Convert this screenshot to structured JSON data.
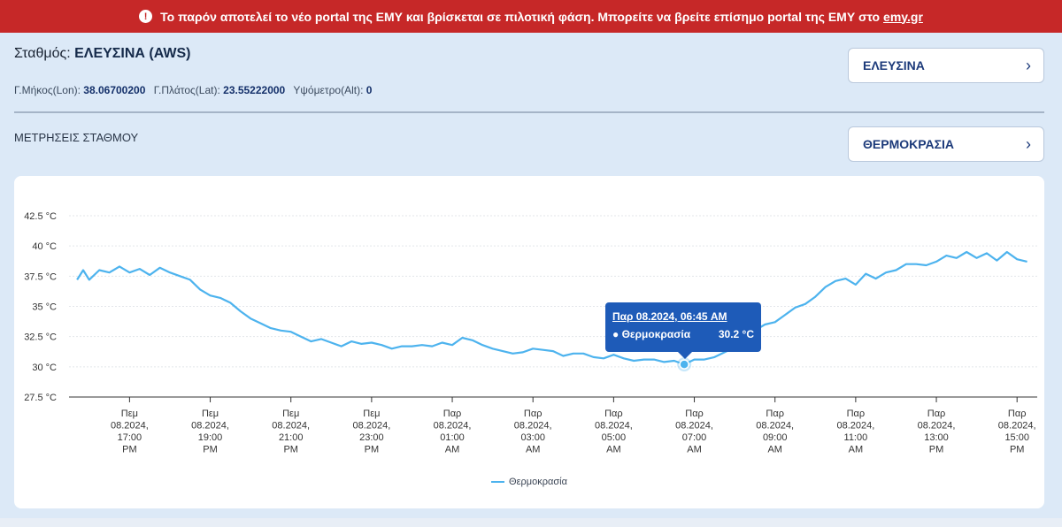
{
  "banner": {
    "text": "Το παρόν αποτελεί το νέο portal της ΕΜΥ και βρίσκεται σε πιλοτική φάση. Μπορείτε να βρείτε επίσημο portal της ΕΜΥ στο",
    "link": "emy.gr",
    "icon": "exclamation-circle-icon",
    "color": "#c62828"
  },
  "station": {
    "label": "Σταθμός:",
    "name": "ΕΛΕΥΣΙΝΑ (AWS)",
    "lon_label": "Γ.Μήκος(Lon):",
    "lon": "38.06700200",
    "lat_label": "Γ.Πλάτος(Lat):",
    "lat": "23.55222000",
    "alt_label": "Υψόμετρο(Alt):",
    "alt": "0"
  },
  "section": {
    "title": "ΜΕΤΡΗΣΕΙΣ ΣΤΑΘΜΟΥ"
  },
  "selectors": {
    "station": "ΕΛΕΥΣΙΝΑ",
    "parameter": "ΘΕΡΜΟΚΡΑΣΙΑ",
    "chevron_icon": "chevron-right-icon"
  },
  "tooltip": {
    "title": "Παρ 08.2024, 06:45 AM",
    "series": "● Θερμοκρασία",
    "value": "30.2 °C"
  },
  "colors": {
    "line": "#4db3ee",
    "tooltip": "#1e5bb8",
    "accent": "#1c3a7a"
  },
  "chart_data": {
    "type": "line",
    "ylim": [
      27.5,
      42.5
    ],
    "ytick_labels": [
      "42.5 °C",
      "40 °C",
      "37.5 °C",
      "35 °C",
      "32.5 °C",
      "30 °C",
      "27.5 °C"
    ],
    "yticks": [
      42.5,
      40,
      37.5,
      35,
      32.5,
      30,
      27.5
    ],
    "xlim": [
      15.5,
      39.5
    ],
    "xticks": [
      17,
      19,
      21,
      23,
      25,
      27,
      29,
      31,
      33,
      35,
      37,
      39
    ],
    "xtick_labels": [
      [
        "Πεμ",
        "08.2024,",
        "17:00",
        "PM"
      ],
      [
        "Πεμ",
        "08.2024,",
        "19:00",
        "PM"
      ],
      [
        "Πεμ",
        "08.2024,",
        "21:00",
        "PM"
      ],
      [
        "Πεμ",
        "08.2024,",
        "23:00",
        "PM"
      ],
      [
        "Παρ",
        "08.2024,",
        "01:00",
        "AM"
      ],
      [
        "Παρ",
        "08.2024,",
        "03:00",
        "AM"
      ],
      [
        "Παρ",
        "08.2024,",
        "05:00",
        "AM"
      ],
      [
        "Παρ",
        "08.2024,",
        "07:00",
        "AM"
      ],
      [
        "Παρ",
        "08.2024,",
        "09:00",
        "AM"
      ],
      [
        "Παρ",
        "08.2024,",
        "11:00",
        "AM"
      ],
      [
        "Παρ",
        "08.2024,",
        "13:00",
        "PM"
      ],
      [
        "Παρ",
        "08.2024,",
        "15:00",
        "PM"
      ]
    ],
    "grid": true,
    "legend_position": "bottom-center",
    "series": [
      {
        "name": "Θερμοκρασία",
        "highlight": {
          "x": 30.75,
          "y": 30.2
        },
        "x": [
          15.7,
          15.85,
          16.0,
          16.25,
          16.5,
          16.75,
          17.0,
          17.25,
          17.5,
          17.75,
          18.0,
          18.25,
          18.5,
          18.75,
          19.0,
          19.25,
          19.5,
          19.75,
          20.0,
          20.25,
          20.5,
          20.75,
          21.0,
          21.25,
          21.5,
          21.75,
          22.0,
          22.25,
          22.5,
          22.75,
          23.0,
          23.25,
          23.5,
          23.75,
          24.0,
          24.25,
          24.5,
          24.75,
          25.0,
          25.25,
          25.5,
          25.75,
          26.0,
          26.25,
          26.5,
          26.75,
          27.0,
          27.25,
          27.5,
          27.75,
          28.0,
          28.25,
          28.5,
          28.75,
          29.0,
          29.25,
          29.5,
          29.75,
          30.0,
          30.25,
          30.5,
          30.75,
          31.0,
          31.25,
          31.5,
          31.75,
          32.0,
          32.25,
          32.5,
          32.75,
          33.0,
          33.25,
          33.5,
          33.75,
          34.0,
          34.25,
          34.5,
          34.75,
          35.0,
          35.25,
          35.5,
          35.75,
          36.0,
          36.25,
          36.5,
          36.75,
          37.0,
          37.25,
          37.5,
          37.75,
          38.0,
          38.25,
          38.5,
          38.75,
          39.0,
          39.25
        ],
        "y": [
          37.2,
          38.0,
          37.2,
          38.0,
          37.8,
          38.3,
          37.8,
          38.1,
          37.6,
          38.2,
          37.8,
          37.5,
          37.2,
          36.4,
          35.9,
          35.7,
          35.3,
          34.6,
          34.0,
          33.6,
          33.2,
          33.0,
          32.9,
          32.5,
          32.1,
          32.3,
          32.0,
          31.7,
          32.1,
          31.9,
          32.0,
          31.8,
          31.5,
          31.7,
          31.7,
          31.8,
          31.7,
          32.0,
          31.8,
          32.4,
          32.2,
          31.8,
          31.5,
          31.3,
          31.1,
          31.2,
          31.5,
          31.4,
          31.3,
          30.9,
          31.1,
          31.1,
          30.8,
          30.7,
          31.0,
          30.7,
          30.5,
          30.6,
          30.6,
          30.4,
          30.5,
          30.2,
          30.6,
          30.6,
          30.8,
          31.2,
          31.6,
          32.5,
          33.0,
          33.5,
          33.7,
          34.3,
          34.9,
          35.2,
          35.8,
          36.6,
          37.1,
          37.3,
          36.8,
          37.7,
          37.3,
          37.8,
          38.0,
          38.5,
          38.5,
          38.4,
          38.7,
          39.2,
          39.0,
          39.5,
          39.0,
          39.4,
          38.8,
          39.5,
          38.9,
          38.7
        ]
      }
    ]
  }
}
